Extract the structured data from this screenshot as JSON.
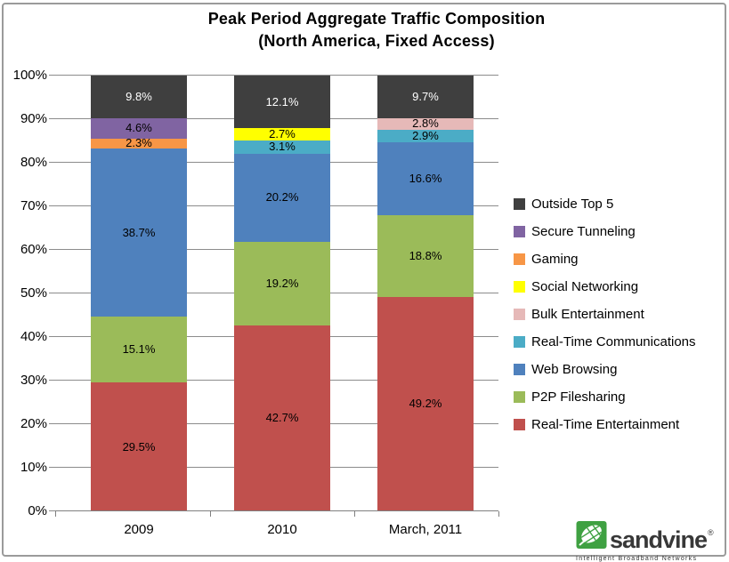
{
  "title": {
    "line1": "Peak Period Aggregate Traffic Composition",
    "line2": "(North America, Fixed  Access)"
  },
  "chart_data": {
    "type": "bar",
    "stacked": true,
    "unit": "%",
    "title": "Peak Period Aggregate Traffic Composition (North America, Fixed Access)",
    "categories": [
      "2009",
      "2010",
      "March, 2011"
    ],
    "series": [
      {
        "name": "Real-Time Entertainment",
        "color": "#C0504D",
        "values": [
          29.5,
          42.7,
          49.2
        ]
      },
      {
        "name": "P2P Filesharing",
        "color": "#9BBB59",
        "values": [
          15.1,
          19.2,
          18.8
        ]
      },
      {
        "name": "Web Browsing",
        "color": "#4F81BD",
        "values": [
          38.7,
          20.2,
          16.6
        ]
      },
      {
        "name": "Real-Time Communications",
        "color": "#4BACC6",
        "values": [
          null,
          3.1,
          2.9
        ]
      },
      {
        "name": "Bulk Entertainment",
        "color": "#E6B9B8",
        "values": [
          null,
          null,
          2.8
        ]
      },
      {
        "name": "Social Networking",
        "color": "#FFFF00",
        "values": [
          null,
          2.7,
          null
        ]
      },
      {
        "name": "Gaming",
        "color": "#F79646",
        "values": [
          2.3,
          null,
          null
        ]
      },
      {
        "name": "Secure Tunneling",
        "color": "#8064A2",
        "values": [
          4.6,
          null,
          null
        ]
      },
      {
        "name": "Outside Top 5",
        "color": "#3F3F3F",
        "label_white": true,
        "values": [
          9.8,
          12.1,
          9.7
        ]
      }
    ],
    "legend": [
      "Outside Top 5",
      "Secure Tunneling",
      "Gaming",
      "Social Networking",
      "Bulk Entertainment",
      "Real-Time Communications",
      "Web Browsing",
      "P2P Filesharing",
      "Real-Time Entertainment"
    ],
    "legend_position": "right",
    "ylim": [
      0,
      100
    ],
    "ytick_step": 10,
    "yticks": [
      "0%",
      "10%",
      "20%",
      "30%",
      "40%",
      "50%",
      "60%",
      "70%",
      "80%",
      "90%",
      "100%"
    ],
    "grid": true
  },
  "logo": {
    "brand": "sandvine",
    "registered": "®",
    "tagline": "Intelligent Broadband Networks",
    "brand_green": "#3FA142"
  }
}
